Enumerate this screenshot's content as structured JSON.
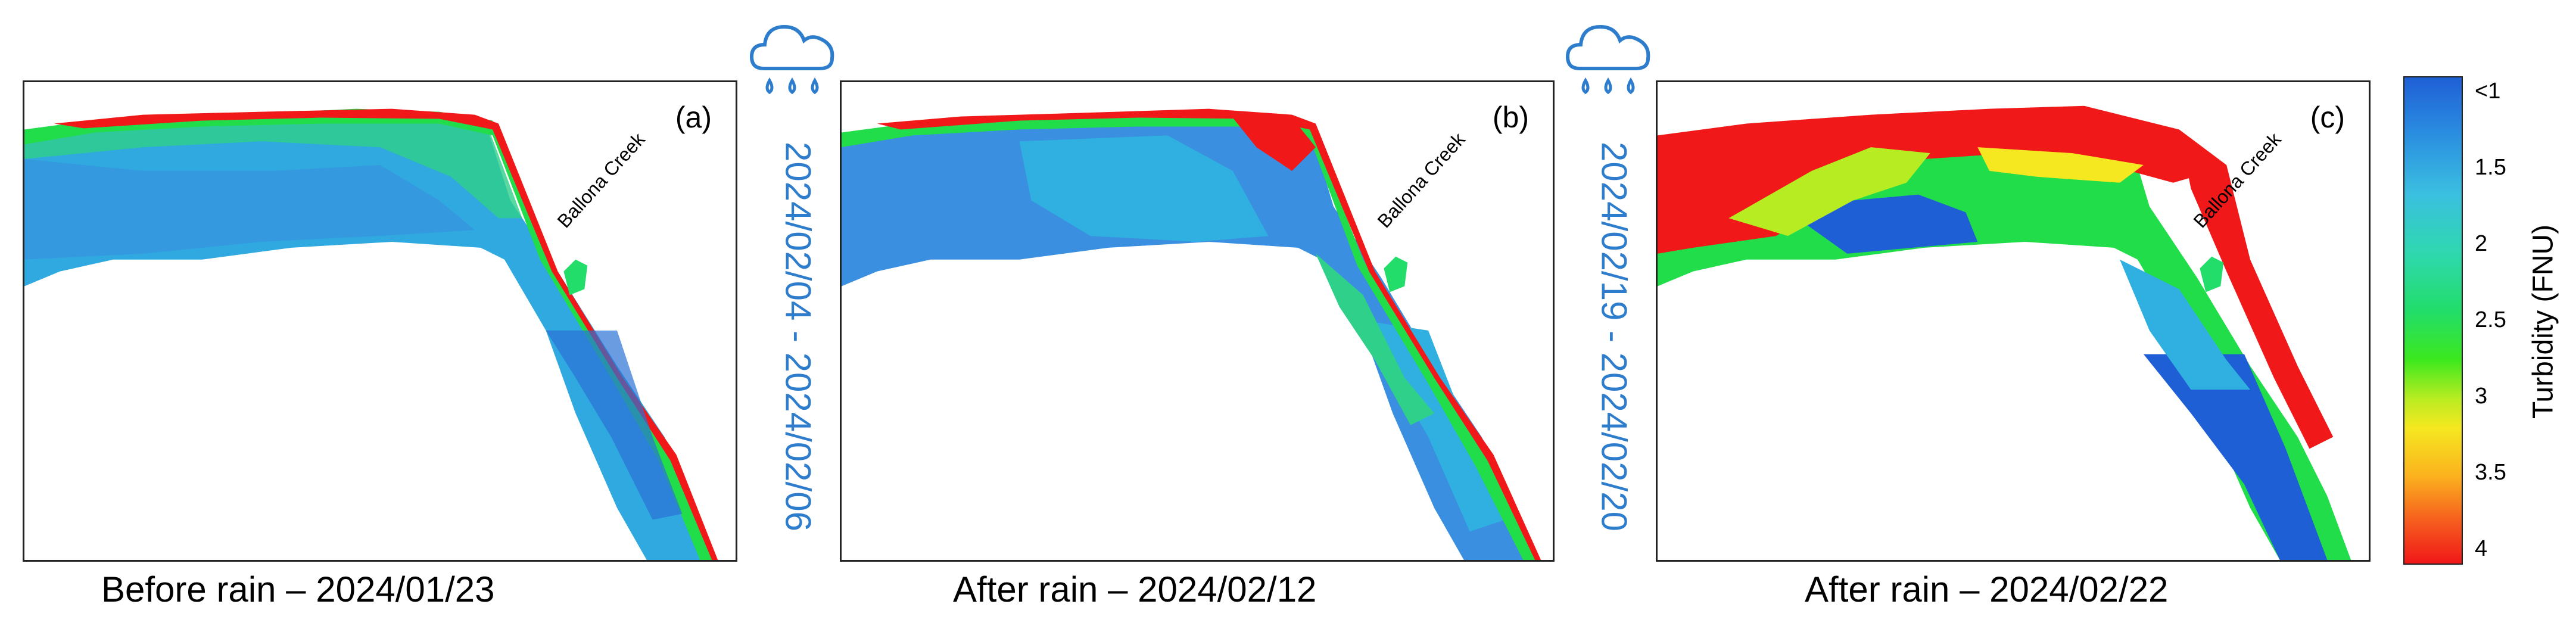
{
  "panels": [
    {
      "letter": "(a)",
      "caption": "Before rain – 2024/01/23",
      "creek": "Ballona Creek"
    },
    {
      "letter": "(b)",
      "caption": "After rain – 2024/02/12",
      "creek": "Ballona Creek"
    },
    {
      "letter": "(c)",
      "caption": "After rain – 2024/02/22",
      "creek": "Ballona Creek"
    }
  ],
  "rain_events": [
    {
      "dates": "2024/02/04 - 2024/02/06"
    },
    {
      "dates": "2024/02/19 - 2024/02/20"
    }
  ],
  "colorbar": {
    "title": "Turbidity (FNU)",
    "ticks": [
      "<1",
      "1.5",
      "2",
      "2.5",
      "3",
      "3.5",
      "4"
    ]
  },
  "colors": {
    "rain": "#2e7dcd",
    "low": "#1f5fd6",
    "mid": "#22dd6a",
    "high": "#f01818"
  }
}
